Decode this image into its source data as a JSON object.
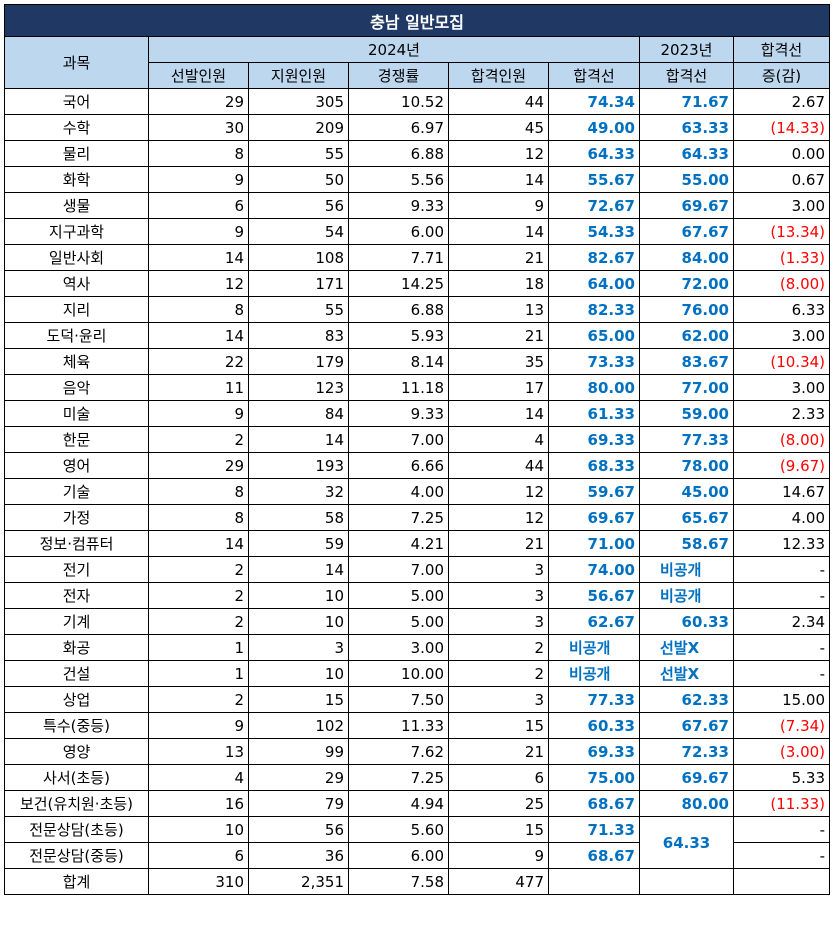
{
  "title": "충남 일반모집",
  "headers": {
    "subject": "과목",
    "year2024": "2024년",
    "year2023": "2023년",
    "change_top": "합격선",
    "change_bottom": "증(감)",
    "selected": "선발인원",
    "applicants": "지원인원",
    "ratio": "경쟁률",
    "passed": "합격인원",
    "cutoff2024": "합격선",
    "cutoff2023": "합격선"
  },
  "rows": [
    {
      "subject": "국어",
      "selected": "29",
      "applicants": "305",
      "ratio": "10.52",
      "passed": "44",
      "cut2024": "74.34",
      "cut2023": "71.67",
      "change": "2.67",
      "neg": false
    },
    {
      "subject": "수학",
      "selected": "30",
      "applicants": "209",
      "ratio": "6.97",
      "passed": "45",
      "cut2024": "49.00",
      "cut2023": "63.33",
      "change": "(14.33)",
      "neg": true
    },
    {
      "subject": "물리",
      "selected": "8",
      "applicants": "55",
      "ratio": "6.88",
      "passed": "12",
      "cut2024": "64.33",
      "cut2023": "64.33",
      "change": "0.00",
      "neg": false
    },
    {
      "subject": "화학",
      "selected": "9",
      "applicants": "50",
      "ratio": "5.56",
      "passed": "14",
      "cut2024": "55.67",
      "cut2023": "55.00",
      "change": "0.67",
      "neg": false
    },
    {
      "subject": "생물",
      "selected": "6",
      "applicants": "56",
      "ratio": "9.33",
      "passed": "9",
      "cut2024": "72.67",
      "cut2023": "69.67",
      "change": "3.00",
      "neg": false
    },
    {
      "subject": "지구과학",
      "selected": "9",
      "applicants": "54",
      "ratio": "6.00",
      "passed": "14",
      "cut2024": "54.33",
      "cut2023": "67.67",
      "change": "(13.34)",
      "neg": true
    },
    {
      "subject": "일반사회",
      "selected": "14",
      "applicants": "108",
      "ratio": "7.71",
      "passed": "21",
      "cut2024": "82.67",
      "cut2023": "84.00",
      "change": "(1.33)",
      "neg": true
    },
    {
      "subject": "역사",
      "selected": "12",
      "applicants": "171",
      "ratio": "14.25",
      "passed": "18",
      "cut2024": "64.00",
      "cut2023": "72.00",
      "change": "(8.00)",
      "neg": true
    },
    {
      "subject": "지리",
      "selected": "8",
      "applicants": "55",
      "ratio": "6.88",
      "passed": "13",
      "cut2024": "82.33",
      "cut2023": "76.00",
      "change": "6.33",
      "neg": false
    },
    {
      "subject": "도덕·윤리",
      "selected": "14",
      "applicants": "83",
      "ratio": "5.93",
      "passed": "21",
      "cut2024": "65.00",
      "cut2023": "62.00",
      "change": "3.00",
      "neg": false
    },
    {
      "subject": "체육",
      "selected": "22",
      "applicants": "179",
      "ratio": "8.14",
      "passed": "35",
      "cut2024": "73.33",
      "cut2023": "83.67",
      "change": "(10.34)",
      "neg": true
    },
    {
      "subject": "음악",
      "selected": "11",
      "applicants": "123",
      "ratio": "11.18",
      "passed": "17",
      "cut2024": "80.00",
      "cut2023": "77.00",
      "change": "3.00",
      "neg": false
    },
    {
      "subject": "미술",
      "selected": "9",
      "applicants": "84",
      "ratio": "9.33",
      "passed": "14",
      "cut2024": "61.33",
      "cut2023": "59.00",
      "change": "2.33",
      "neg": false
    },
    {
      "subject": "한문",
      "selected": "2",
      "applicants": "14",
      "ratio": "7.00",
      "passed": "4",
      "cut2024": "69.33",
      "cut2023": "77.33",
      "change": "(8.00)",
      "neg": true
    },
    {
      "subject": "영어",
      "selected": "29",
      "applicants": "193",
      "ratio": "6.66",
      "passed": "44",
      "cut2024": "68.33",
      "cut2023": "78.00",
      "change": "(9.67)",
      "neg": true
    },
    {
      "subject": "기술",
      "selected": "8",
      "applicants": "32",
      "ratio": "4.00",
      "passed": "12",
      "cut2024": "59.67",
      "cut2023": "45.00",
      "change": "14.67",
      "neg": false
    },
    {
      "subject": "가정",
      "selected": "8",
      "applicants": "58",
      "ratio": "7.25",
      "passed": "12",
      "cut2024": "69.67",
      "cut2023": "65.67",
      "change": "4.00",
      "neg": false
    },
    {
      "subject": "정보·컴퓨터",
      "selected": "14",
      "applicants": "59",
      "ratio": "4.21",
      "passed": "21",
      "cut2024": "71.00",
      "cut2023": "58.67",
      "change": "12.33",
      "neg": false
    },
    {
      "subject": "전기",
      "selected": "2",
      "applicants": "14",
      "ratio": "7.00",
      "passed": "3",
      "cut2024": "74.00",
      "cut2023": "비공개",
      "change": "-",
      "neg": false,
      "cut2023_text": true
    },
    {
      "subject": "전자",
      "selected": "2",
      "applicants": "10",
      "ratio": "5.00",
      "passed": "3",
      "cut2024": "56.67",
      "cut2023": "비공개",
      "change": "-",
      "neg": false,
      "cut2023_text": true
    },
    {
      "subject": "기계",
      "selected": "2",
      "applicants": "10",
      "ratio": "5.00",
      "passed": "3",
      "cut2024": "62.67",
      "cut2023": "60.33",
      "change": "2.34",
      "neg": false
    },
    {
      "subject": "화공",
      "selected": "1",
      "applicants": "3",
      "ratio": "3.00",
      "passed": "2",
      "cut2024": "비공개",
      "cut2023": "선발X",
      "change": "-",
      "neg": false,
      "cut2024_text": true,
      "cut2023_text": true
    },
    {
      "subject": "건설",
      "selected": "1",
      "applicants": "10",
      "ratio": "10.00",
      "passed": "2",
      "cut2024": "비공개",
      "cut2023": "선발X",
      "change": "-",
      "neg": false,
      "cut2024_text": true,
      "cut2023_text": true
    },
    {
      "subject": "상업",
      "selected": "2",
      "applicants": "15",
      "ratio": "7.50",
      "passed": "3",
      "cut2024": "77.33",
      "cut2023": "62.33",
      "change": "15.00",
      "neg": false
    },
    {
      "subject": "특수(중등)",
      "selected": "9",
      "applicants": "102",
      "ratio": "11.33",
      "passed": "15",
      "cut2024": "60.33",
      "cut2023": "67.67",
      "change": "(7.34)",
      "neg": true
    },
    {
      "subject": "영양",
      "selected": "13",
      "applicants": "99",
      "ratio": "7.62",
      "passed": "21",
      "cut2024": "69.33",
      "cut2023": "72.33",
      "change": "(3.00)",
      "neg": true
    },
    {
      "subject": "사서(초등)",
      "selected": "4",
      "applicants": "29",
      "ratio": "7.25",
      "passed": "6",
      "cut2024": "75.00",
      "cut2023": "69.67",
      "change": "5.33",
      "neg": false
    },
    {
      "subject": "보건(유치원·초등)",
      "selected": "16",
      "applicants": "79",
      "ratio": "4.94",
      "passed": "25",
      "cut2024": "68.67",
      "cut2023": "80.00",
      "change": "(11.33)",
      "neg": true
    }
  ],
  "counsel_rows": [
    {
      "subject": "전문상담(초등)",
      "selected": "10",
      "applicants": "56",
      "ratio": "5.60",
      "passed": "15",
      "cut2024": "71.33",
      "change": "-"
    },
    {
      "subject": "전문상담(중등)",
      "selected": "6",
      "applicants": "36",
      "ratio": "6.00",
      "passed": "9",
      "cut2024": "68.67",
      "change": "-"
    }
  ],
  "counsel_cut2023": "64.33",
  "total": {
    "label": "합계",
    "selected": "310",
    "applicants": "2,351",
    "ratio": "7.58",
    "passed": "477"
  }
}
